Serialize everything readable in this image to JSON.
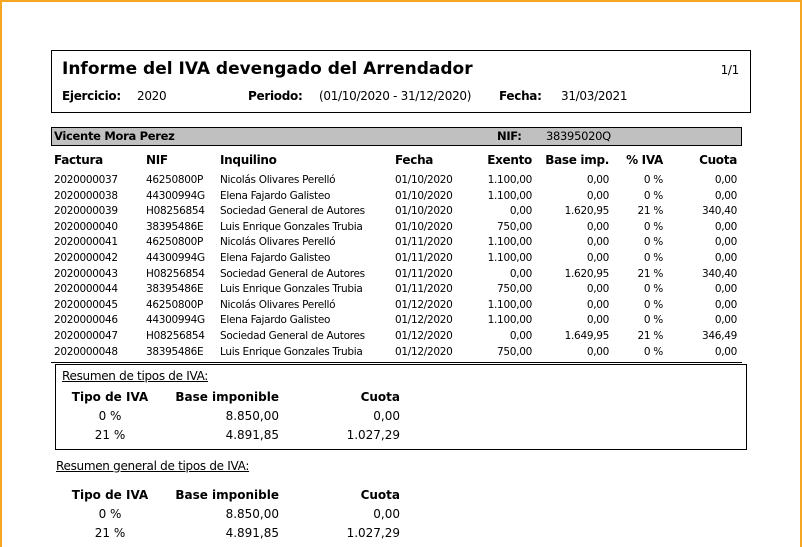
{
  "report": {
    "title": "Informe del IVA devengado del Arrendador",
    "page": "1/1",
    "ejercicio_label": "Ejercicio:",
    "ejercicio": "2020",
    "periodo_label": "Periodo:",
    "periodo": "(01/10/2020 - 31/12/2020)",
    "fecha_label": "Fecha:",
    "fecha": "31/03/2021"
  },
  "owner": {
    "name": "Vicente Mora Perez",
    "nif_label": "NIF:",
    "nif": "38395020Q"
  },
  "table": {
    "headers": [
      "Factura",
      "NIF",
      "Inquilino",
      "Fecha",
      "Exento",
      "Base imp.",
      "% IVA",
      "Cuota"
    ],
    "rows": [
      [
        "2020000037",
        "46250800P",
        "Nicolás Olivares Perelló",
        "01/10/2020",
        "1.100,00",
        "0,00",
        "0 %",
        "0,00"
      ],
      [
        "2020000038",
        "44300994G",
        "Elena Fajardo Galisteo",
        "01/10/2020",
        "1.100,00",
        "0,00",
        "0 %",
        "0,00"
      ],
      [
        "2020000039",
        "H08256854",
        "Sociedad General de Autores",
        "01/10/2020",
        "0,00",
        "1.620,95",
        "21 %",
        "340,40"
      ],
      [
        "2020000040",
        "38395486E",
        "Luis Enrique Gonzales Trubia",
        "01/10/2020",
        "750,00",
        "0,00",
        "0 %",
        "0,00"
      ],
      [
        "2020000041",
        "46250800P",
        "Nicolás Olivares Perelló",
        "01/11/2020",
        "1.100,00",
        "0,00",
        "0 %",
        "0,00"
      ],
      [
        "2020000042",
        "44300994G",
        "Elena Fajardo Galisteo",
        "01/11/2020",
        "1.100,00",
        "0,00",
        "0 %",
        "0,00"
      ],
      [
        "2020000043",
        "H08256854",
        "Sociedad General de Autores",
        "01/11/2020",
        "0,00",
        "1.620,95",
        "21 %",
        "340,40"
      ],
      [
        "2020000044",
        "38395486E",
        "Luis Enrique Gonzales Trubia",
        "01/11/2020",
        "750,00",
        "0,00",
        "0 %",
        "0,00"
      ],
      [
        "2020000045",
        "46250800P",
        "Nicolás Olivares Perelló",
        "01/12/2020",
        "1.100,00",
        "0,00",
        "0 %",
        "0,00"
      ],
      [
        "2020000046",
        "44300994G",
        "Elena Fajardo Galisteo",
        "01/12/2020",
        "1.100,00",
        "0,00",
        "0 %",
        "0,00"
      ],
      [
        "2020000047",
        "H08256854",
        "Sociedad General de Autores",
        "01/12/2020",
        "0,00",
        "1.649,95",
        "21 %",
        "346,49"
      ],
      [
        "2020000048",
        "38395486E",
        "Luis Enrique Gonzales Trubia",
        "01/12/2020",
        "750,00",
        "0,00",
        "0 %",
        "0,00"
      ]
    ]
  },
  "summary": {
    "title": "Resumen de tipos de IVA:",
    "headers": [
      "Tipo de IVA",
      "Base imponible",
      "Cuota"
    ],
    "rows": [
      [
        "0 %",
        "8.850,00",
        "0,00"
      ],
      [
        "21 %",
        "4.891,85",
        "1.027,29"
      ]
    ]
  },
  "general_summary": {
    "title": "Resumen general de tipos de IVA:",
    "headers": [
      "Tipo de IVA",
      "Base imponible",
      "Cuota"
    ],
    "rows": [
      [
        "0 %",
        "8.850,00",
        "0,00"
      ],
      [
        "21 %",
        "4.891,85",
        "1.027,29"
      ]
    ]
  },
  "colors": {
    "frame": "#f5a623",
    "owner_bar": "#c0c0c0"
  }
}
